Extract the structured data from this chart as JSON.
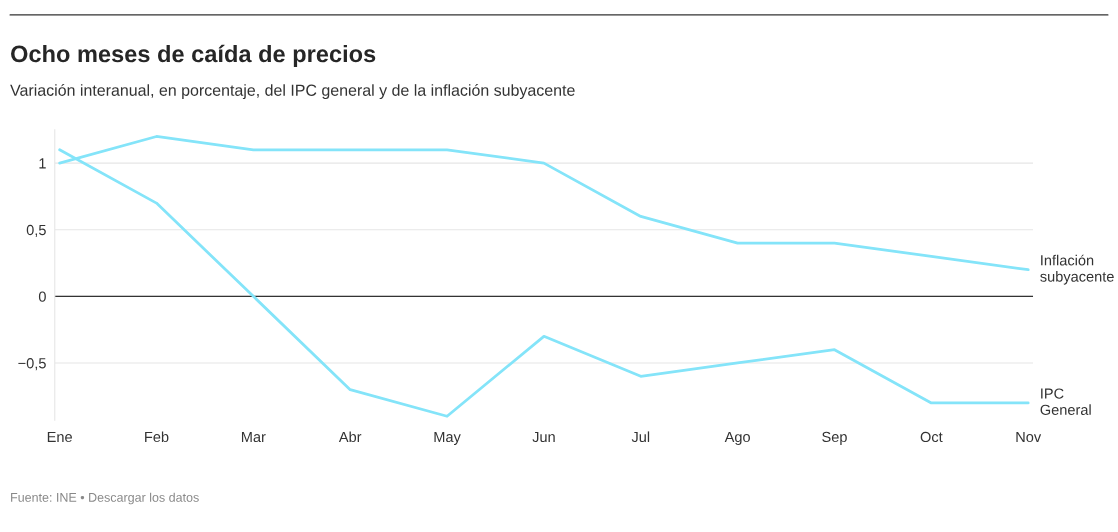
{
  "chart_data": {
    "type": "line",
    "title": "Ocho meses de caída de precios",
    "subtitle": "Variación interanual, en porcentaje, del IPC general y de la inflación subyacente",
    "categories": [
      "Ene",
      "Feb",
      "Mar",
      "Abr",
      "May",
      "Jun",
      "Jul",
      "Ago",
      "Sep",
      "Oct",
      "Nov"
    ],
    "series": [
      {
        "name": "Inflación\nsubyacente",
        "color": "#84e4f9",
        "values": [
          1.0,
          1.2,
          1.1,
          1.1,
          1.1,
          1.0,
          0.6,
          0.4,
          0.4,
          0.3,
          0.2
        ]
      },
      {
        "name": "IPC\nGeneral",
        "color": "#84e4f9",
        "values": [
          1.1,
          0.7,
          0.0,
          -0.7,
          -0.9,
          -0.3,
          -0.6,
          -0.5,
          -0.4,
          -0.8,
          -0.8
        ]
      }
    ],
    "ylim": [
      -0.93,
      1.25
    ],
    "yticks": [
      {
        "value": -0.5,
        "label": "−0,5"
      },
      0,
      {
        "value": 0.5,
        "label": "0,5"
      },
      1
    ],
    "grid": "y",
    "legend": false,
    "marker": "none",
    "line_style": "solid",
    "ref_lines": [
      {
        "axis": "y",
        "value": 0,
        "label": null,
        "color": "#333333"
      }
    ],
    "annotations": [
      "Fuente: INE • Descargar los datos"
    ]
  }
}
